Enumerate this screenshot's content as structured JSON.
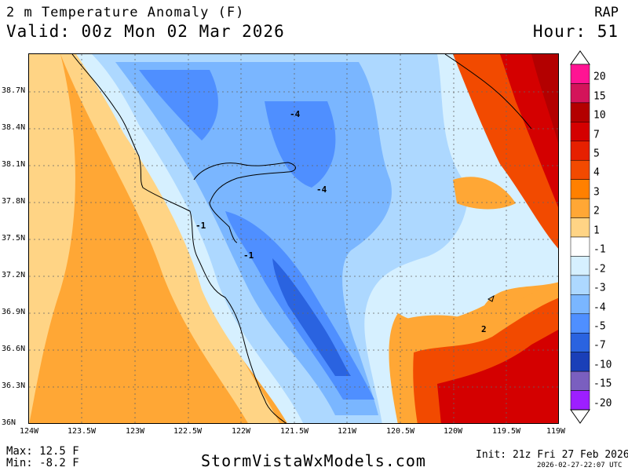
{
  "header": {
    "title": "2 m Temperature Anomaly (F)",
    "valid": "Valid: 00z Mon 02 Mar 2026",
    "model": "RAP",
    "hour": "Hour: 51"
  },
  "axes": {
    "lat_labels": [
      "38.7N",
      "38.4N",
      "38.1N",
      "37.8N",
      "37.5N",
      "37.2N",
      "36.9N",
      "36.6N",
      "36.3N",
      "36N"
    ],
    "lon_labels": [
      "124W",
      "123.5W",
      "123W",
      "122.5W",
      "122W",
      "121.5W",
      "121W",
      "120.5W",
      "120W",
      "119.5W",
      "119W"
    ]
  },
  "colorbar": {
    "labels": [
      "20",
      "15",
      "10",
      "7",
      "5",
      "4",
      "3",
      "2",
      "1",
      "-1",
      "-2",
      "-3",
      "-4",
      "-5",
      "-7",
      "-10",
      "-15",
      "-20"
    ],
    "colors": [
      "#ff1493",
      "#d4145a",
      "#b30000",
      "#d40000",
      "#e62000",
      "#f24a00",
      "#ff8000",
      "#ffa735",
      "#ffd485",
      "#ffffff",
      "#d6f0ff",
      "#add8ff",
      "#7ab6ff",
      "#4f8fff",
      "#2a63e0",
      "#1a3fb8",
      "#7a5fbf",
      "#9d1fff"
    ]
  },
  "contour_labels": [
    "-4",
    "-4",
    "-1",
    "-1",
    "2"
  ],
  "stats": {
    "max": "Max: 12.5 F",
    "min": "Min: -8.2 F"
  },
  "footer": {
    "website": "StormVistaWxModels.com",
    "init": "Init: 21z Fri 27 Feb 2026",
    "timestamp": "2026-02-27-22:07 UTC"
  }
}
